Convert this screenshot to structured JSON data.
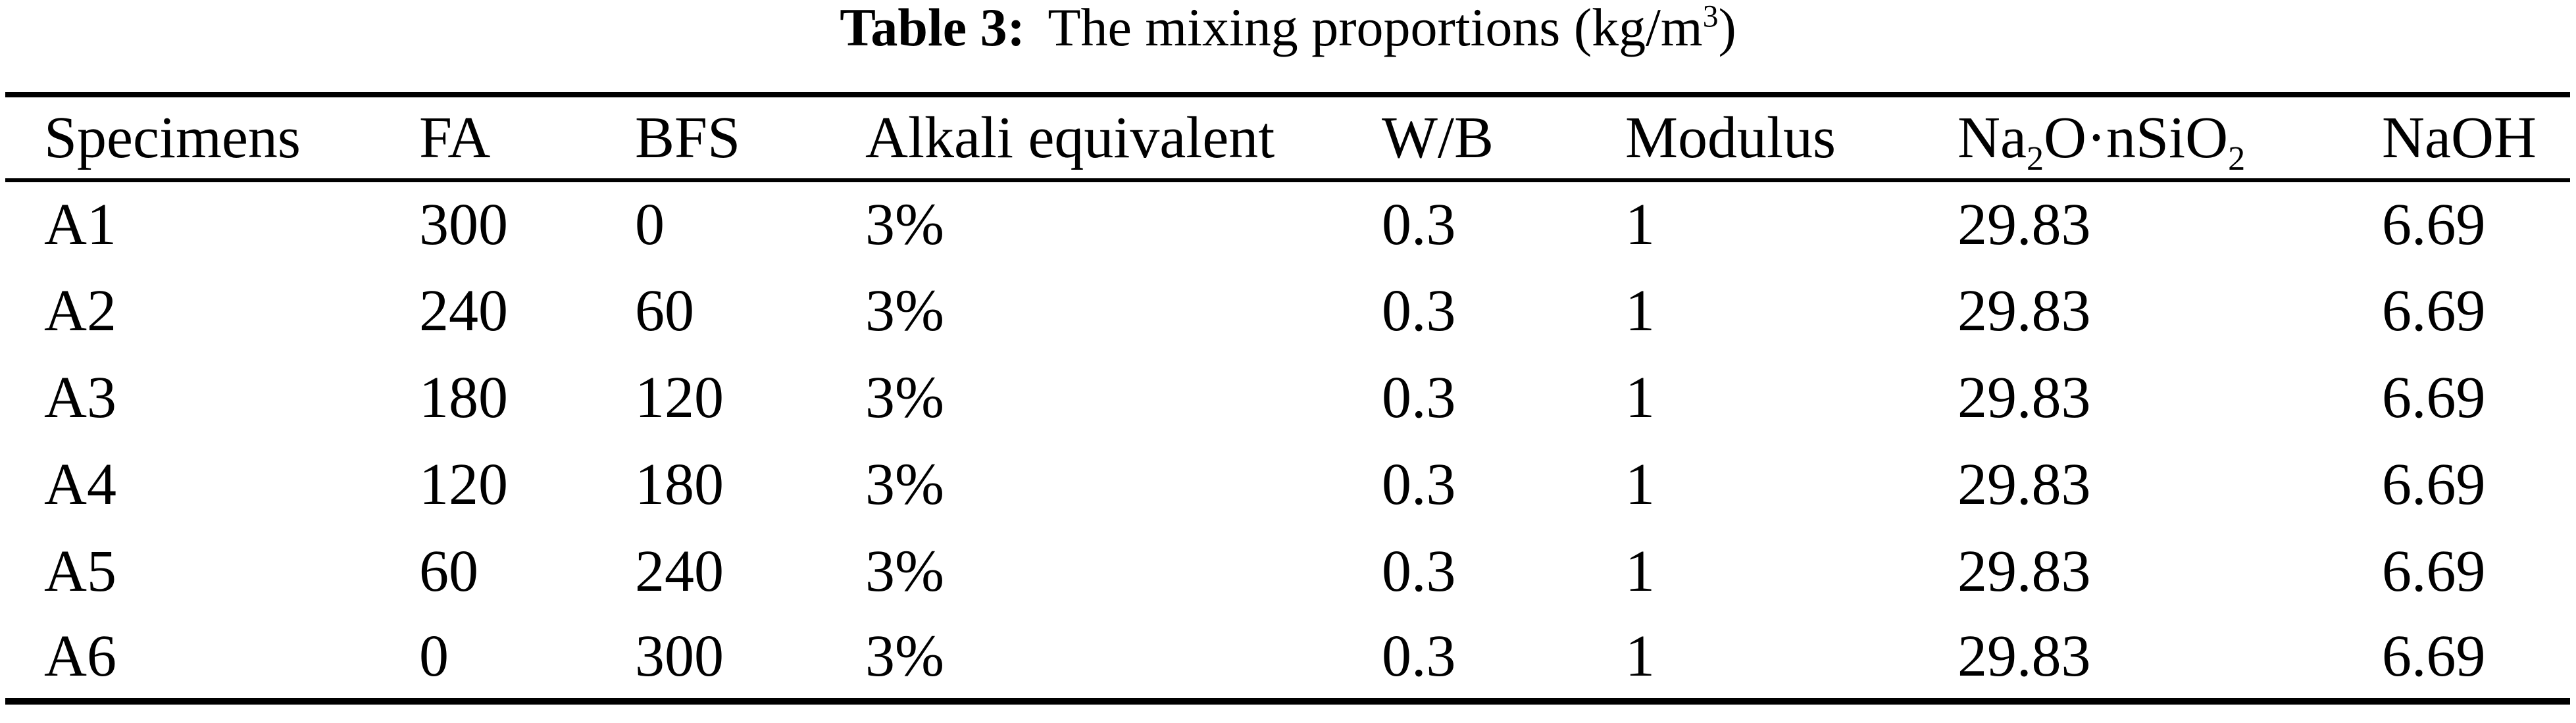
{
  "title": {
    "full_text": "Table 3: The mixing proportions (kg/m³)",
    "segments": [
      {
        "style": "bold",
        "text": "Table 3:"
      },
      {
        "style": "plain",
        "text": "The mixing proportions (kg/m"
      },
      {
        "style": "sup",
        "text": "3"
      },
      {
        "style": "plain",
        "text": ")"
      }
    ]
  },
  "table": {
    "headers": [
      {
        "full_text": "Specimens",
        "segments": [
          {
            "style": "plain",
            "text": "Specimens"
          }
        ]
      },
      {
        "full_text": "FA",
        "segments": [
          {
            "style": "plain",
            "text": "FA"
          }
        ]
      },
      {
        "full_text": "BFS",
        "segments": [
          {
            "style": "plain",
            "text": "BFS"
          }
        ]
      },
      {
        "full_text": "Alkali equivalent",
        "segments": [
          {
            "style": "plain",
            "text": "Alkali equivalent"
          }
        ]
      },
      {
        "full_text": "W/B",
        "segments": [
          {
            "style": "plain",
            "text": "W/B"
          }
        ]
      },
      {
        "full_text": "Modulus",
        "segments": [
          {
            "style": "plain",
            "text": "Modulus"
          }
        ]
      },
      {
        "full_text": "Na₂O·nSiO₂",
        "segments": [
          {
            "style": "plain",
            "text": "Na"
          },
          {
            "style": "sub",
            "text": "2"
          },
          {
            "style": "plain",
            "text": "O·nSiO"
          },
          {
            "style": "sub",
            "text": "2"
          }
        ]
      },
      {
        "full_text": "NaOH",
        "segments": [
          {
            "style": "plain",
            "text": "NaOH"
          }
        ]
      }
    ],
    "rows": [
      [
        "A1",
        "300",
        "0",
        "3%",
        "0.3",
        "1",
        "29.83",
        "6.69"
      ],
      [
        "A2",
        "240",
        "60",
        "3%",
        "0.3",
        "1",
        "29.83",
        "6.69"
      ],
      [
        "A3",
        "180",
        "120",
        "3%",
        "0.3",
        "1",
        "29.83",
        "6.69"
      ],
      [
        "A4",
        "120",
        "180",
        "3%",
        "0.3",
        "1",
        "29.83",
        "6.69"
      ],
      [
        "A5",
        "60",
        "240",
        "3%",
        "0.3",
        "1",
        "29.83",
        "6.69"
      ],
      [
        "A6",
        "0",
        "300",
        "3%",
        "0.3",
        "1",
        "29.83",
        "6.69"
      ]
    ]
  },
  "colors": {
    "text": "#000000",
    "background": "#ffffff",
    "rule": "#000000"
  }
}
